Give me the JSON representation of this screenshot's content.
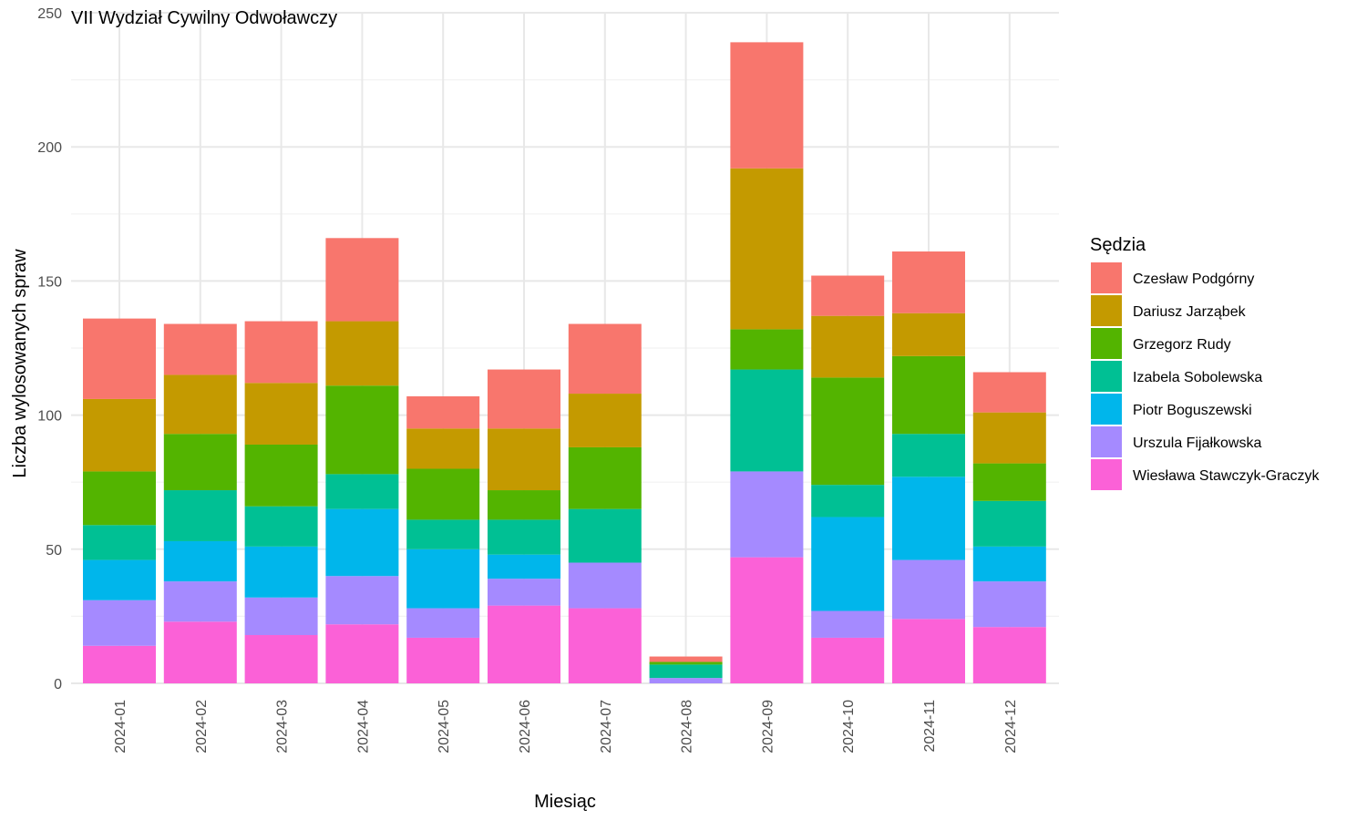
{
  "chart_data": {
    "type": "bar",
    "stacked": true,
    "title": "VII Wydział Cywilny Odwoławczy",
    "xlabel": "Miesiąc",
    "ylabel": "Liczba wylosowanych spraw",
    "ylim": [
      0,
      250
    ],
    "yticks": [
      0,
      50,
      100,
      150,
      200,
      250
    ],
    "grid": true,
    "legend_title": "Sędzia",
    "legend_position": "right",
    "categories": [
      "2024-01",
      "2024-02",
      "2024-03",
      "2024-04",
      "2024-05",
      "2024-06",
      "2024-07",
      "2024-08",
      "2024-09",
      "2024-10",
      "2024-11",
      "2024-12"
    ],
    "series": [
      {
        "name": "Wiesława Stawczyk-Graczyk",
        "color": "#FB61D7",
        "values": [
          14,
          23,
          18,
          22,
          17,
          29,
          28,
          0,
          47,
          17,
          24,
          21
        ]
      },
      {
        "name": "Urszula Fijałkowska",
        "color": "#A58AFF",
        "values": [
          17,
          15,
          14,
          18,
          11,
          10,
          17,
          2,
          32,
          10,
          22,
          17
        ]
      },
      {
        "name": "Piotr Boguszewski",
        "color": "#00B6EB",
        "values": [
          15,
          15,
          19,
          25,
          22,
          9,
          0,
          0,
          0,
          35,
          31,
          13
        ]
      },
      {
        "name": "Izabela Sobolewska",
        "color": "#00C094",
        "values": [
          13,
          19,
          15,
          13,
          11,
          13,
          20,
          5,
          38,
          12,
          16,
          17
        ]
      },
      {
        "name": "Grzegorz Rudy",
        "color": "#53B400",
        "values": [
          20,
          21,
          23,
          33,
          19,
          11,
          23,
          1,
          15,
          40,
          29,
          14
        ]
      },
      {
        "name": "Dariusz Jarząbek",
        "color": "#C49A00",
        "values": [
          27,
          22,
          23,
          24,
          15,
          23,
          20,
          0,
          60,
          23,
          16,
          19
        ]
      },
      {
        "name": "Czesław Podgórny",
        "color": "#F8766D",
        "values": [
          30,
          19,
          23,
          31,
          12,
          22,
          26,
          2,
          47,
          15,
          23,
          15
        ]
      }
    ],
    "legend_order": [
      "Czesław Podgórny",
      "Dariusz Jarząbek",
      "Grzegorz Rudy",
      "Izabela Sobolewska",
      "Piotr Boguszewski",
      "Urszula Fijałkowska",
      "Wiesława Stawczyk-Graczyk"
    ]
  }
}
